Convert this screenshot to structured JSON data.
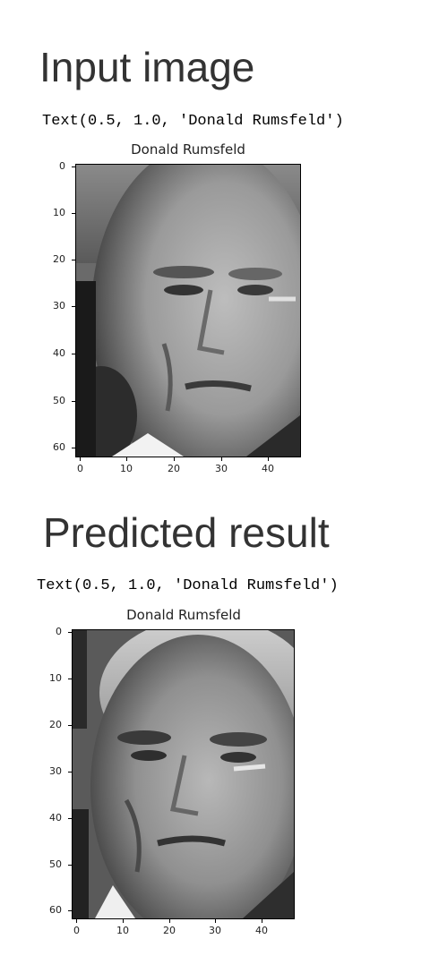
{
  "sections": [
    {
      "heading": "Input image",
      "output_text": "Text(0.5, 1.0, 'Donald Rumsfeld')",
      "plot": {
        "title": "Donald Rumsfeld",
        "y_ticks": [
          "0",
          "10",
          "20",
          "30",
          "40",
          "50",
          "60"
        ],
        "x_ticks": [
          "0",
          "10",
          "20",
          "30",
          "40"
        ],
        "image_alt": "grayscale-face-image"
      }
    },
    {
      "heading": "Predicted result",
      "output_text": "Text(0.5, 1.0, 'Donald Rumsfeld')",
      "plot": {
        "title": "Donald Rumsfeld",
        "y_ticks": [
          "0",
          "10",
          "20",
          "30",
          "40",
          "50",
          "60"
        ],
        "x_ticks": [
          "0",
          "10",
          "20",
          "30",
          "40"
        ],
        "image_alt": "grayscale-face-image"
      }
    }
  ]
}
